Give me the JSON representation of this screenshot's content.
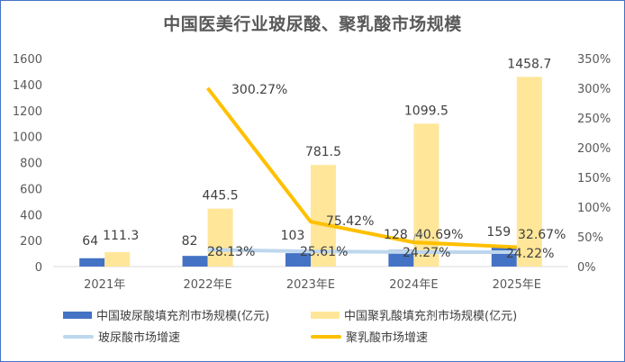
{
  "chart": {
    "title": "中国医美行业玻尿酸、聚乳酸市场规模",
    "colors": {
      "ha_bar": "#4472c4",
      "pla_bar": "#ffe699",
      "ha_line": "#bdd7ee",
      "pla_line": "#ffc000",
      "axis_text": "#595959",
      "border": "#4472c4"
    },
    "legend": [
      {
        "label": "中国玻尿酸填充剂市场规模(亿元)",
        "type": "bar",
        "color": "#4472c4"
      },
      {
        "label": "中国聚乳酸填充剂市场规模(亿元)",
        "type": "bar",
        "color": "#ffe699"
      },
      {
        "label": "玻尿酸市场增速",
        "type": "line",
        "color": "#bdd7ee"
      },
      {
        "label": "聚乳酸市场增速",
        "type": "line",
        "color": "#ffc000"
      }
    ],
    "left_axis_ticks": [
      "0",
      "200",
      "400",
      "600",
      "800",
      "1000",
      "1200",
      "1400",
      "1600"
    ],
    "right_axis_ticks": [
      "0%",
      "50%",
      "100%",
      "150%",
      "200%",
      "250%",
      "300%",
      "350%"
    ]
  },
  "chart_data": {
    "type": "bar",
    "title": "中国医美行业玻尿酸、聚乳酸市场规模",
    "categories": [
      "2021年",
      "2022年E",
      "2023年E",
      "2024年E",
      "2025年E"
    ],
    "series": [
      {
        "name": "中国玻尿酸填充剂市场规模(亿元)",
        "type": "bar",
        "axis": "left",
        "values": [
          64,
          82,
          103,
          128,
          159
        ],
        "labels": [
          "64",
          "82",
          "103",
          "128",
          "159"
        ]
      },
      {
        "name": "中国聚乳酸填充剂市场规模(亿元)",
        "type": "bar",
        "axis": "left",
        "values": [
          111.3,
          445.5,
          781.5,
          1099.5,
          1458.7
        ],
        "labels": [
          "111.3",
          "445.5",
          "781.5",
          "1099.5",
          "1458.7"
        ]
      },
      {
        "name": "玻尿酸市场增速",
        "type": "line",
        "axis": "right",
        "values": [
          null,
          28.13,
          25.61,
          24.27,
          24.22
        ],
        "labels": [
          "",
          "28.13%",
          "25.61%",
          "24.27%",
          "24.22%"
        ]
      },
      {
        "name": "聚乳酸市场增速",
        "type": "line",
        "axis": "right",
        "values": [
          null,
          300.27,
          75.42,
          40.69,
          32.67
        ],
        "labels": [
          "",
          "300.27%",
          "75.42%",
          "40.69%",
          "32.67%"
        ]
      }
    ],
    "xlabel": "",
    "ylabel": "",
    "ylim": [
      0,
      1600
    ],
    "y2lim": [
      0,
      350
    ],
    "y2_unit": "%",
    "grid": false,
    "legend_position": "bottom"
  }
}
